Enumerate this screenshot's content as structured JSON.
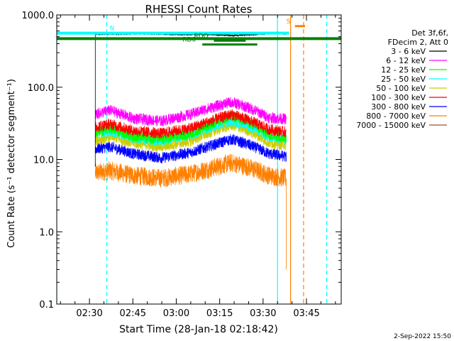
{
  "chart_data": {
    "type": "line",
    "title": "RHESSI Count Rates",
    "xlabel": "Start Time (28-Jan-18 02:18:42)",
    "ylabel": "Count Rate (s⁻¹ detector segment⁻¹)",
    "y_scale": "log",
    "ylim": [
      0.1,
      1000
    ],
    "xlim": [
      "02:18:42",
      "03:57:00"
    ],
    "y_ticks": [
      "0.1",
      "1.0",
      "10.0",
      "100.0",
      "1000.0"
    ],
    "x_ticks": [
      "02:30",
      "02:45",
      "03:00",
      "03:15",
      "03:30",
      "03:45"
    ],
    "legend_position": "right",
    "legend_header": [
      "Det 3f,6f,",
      "FDecim 2, Att 0"
    ],
    "grid": false,
    "series": [
      {
        "name": "3 - 6 keV",
        "color": "#000000",
        "x": [
          "02:32:00",
          "02:40:00",
          "02:50:00",
          "03:00:00",
          "03:10:00",
          "03:20:00",
          "03:30:00",
          "03:35:00",
          "03:38:00"
        ],
        "values": [
          540,
          545,
          550,
          535,
          540,
          520,
          545,
          570,
          540
        ]
      },
      {
        "name": "6 - 12 keV",
        "color": "#ff00ff",
        "x": [
          "02:32:00",
          "02:37:00",
          "02:45:00",
          "02:55:00",
          "03:05:00",
          "03:12:00",
          "03:19:00",
          "03:25:00",
          "03:32:00",
          "03:38:00"
        ],
        "values": [
          42,
          48,
          37,
          34,
          42,
          52,
          62,
          52,
          38,
          36
        ]
      },
      {
        "name": "12 - 25 keV",
        "color": "#00ff00",
        "x": [
          "02:32:00",
          "02:37:00",
          "02:45:00",
          "02:55:00",
          "03:05:00",
          "03:12:00",
          "03:19:00",
          "03:25:00",
          "03:32:00",
          "03:38:00"
        ],
        "values": [
          24,
          27,
          21,
          19,
          23,
          31,
          40,
          33,
          22,
          20
        ]
      },
      {
        "name": "25 - 50 keV",
        "color": "#00ffff",
        "x": [
          "02:32:00",
          "02:37:00",
          "02:45:00",
          "02:55:00",
          "03:05:00",
          "03:12:00",
          "03:19:00",
          "03:25:00",
          "03:32:00",
          "03:38:00"
        ],
        "values": [
          23,
          25,
          20,
          18,
          22,
          28,
          34,
          29,
          21,
          19
        ]
      },
      {
        "name": "50 - 100 keV",
        "color": "#cccc00",
        "x": [
          "02:32:00",
          "02:37:00",
          "02:45:00",
          "02:55:00",
          "03:05:00",
          "03:12:00",
          "03:19:00",
          "03:25:00",
          "03:32:00",
          "03:38:00"
        ],
        "values": [
          18,
          21,
          17,
          15,
          18,
          24,
          30,
          25,
          17,
          16
        ]
      },
      {
        "name": "100 - 300 keV",
        "color": "#ff0000",
        "x": [
          "02:32:00",
          "02:37:00",
          "02:45:00",
          "02:55:00",
          "03:05:00",
          "03:12:00",
          "03:19:00",
          "03:25:00",
          "03:32:00",
          "03:38:00"
        ],
        "values": [
          28,
          31,
          25,
          23,
          27,
          34,
          42,
          35,
          26,
          24
        ]
      },
      {
        "name": "300 - 800 keV",
        "color": "#0000ff",
        "x": [
          "02:32:00",
          "02:37:00",
          "02:45:00",
          "02:55:00",
          "03:05:00",
          "03:12:00",
          "03:19:00",
          "03:25:00",
          "03:32:00",
          "03:38:00"
        ],
        "values": [
          14,
          15,
          12,
          10.5,
          12.5,
          15.5,
          19,
          16,
          12,
          11
        ]
      },
      {
        "name": "800 - 7000 keV",
        "color": "#ff8000",
        "x": [
          "02:32:00",
          "02:37:00",
          "02:45:00",
          "02:55:00",
          "03:05:00",
          "03:12:00",
          "03:19:00",
          "03:25:00",
          "03:32:00",
          "03:38:00"
        ],
        "values": [
          6.5,
          7,
          6,
          5.5,
          6.3,
          7.5,
          9,
          7.8,
          6,
          5.5
        ]
      },
      {
        "name": "7000 - 15000 keV",
        "color": "#a0522d",
        "x": [],
        "values": []
      }
    ],
    "attenuator_bars": [
      {
        "label": "N",
        "color": "#00ffff",
        "start": "02:18:42",
        "end": "03:39:00",
        "level": 560
      },
      {
        "label": "",
        "color": "#008000",
        "start": "02:18:42",
        "end": "03:57:00",
        "level": 470
      },
      {
        "label": "RD6",
        "color": "#008000",
        "start": "03:09:00",
        "end": "03:28:00",
        "level": 390
      },
      {
        "label": "RDO",
        "color": "#008000",
        "start": "03:13:00",
        "end": "03:24:00",
        "level": 440
      },
      {
        "label": "S",
        "color": "#ff8000",
        "start": "03:41:00",
        "end": "03:44:30",
        "level": 700
      }
    ],
    "vertical_lines": [
      {
        "time": "02:18:42",
        "color": "#00ffff",
        "style": "solid"
      },
      {
        "time": "02:36:00",
        "color": "#00ffff",
        "style": "dashed"
      },
      {
        "time": "03:35:00",
        "color": "#00ffff",
        "style": "solid"
      },
      {
        "time": "03:39:30",
        "color": "#ff8000",
        "style": "solid"
      },
      {
        "time": "03:44:00",
        "color": "#ff8000",
        "style": "dashed"
      },
      {
        "time": "03:52:00",
        "color": "#00ffff",
        "style": "dashed"
      }
    ]
  },
  "footer_date": "2-Sep-2022 15:50"
}
